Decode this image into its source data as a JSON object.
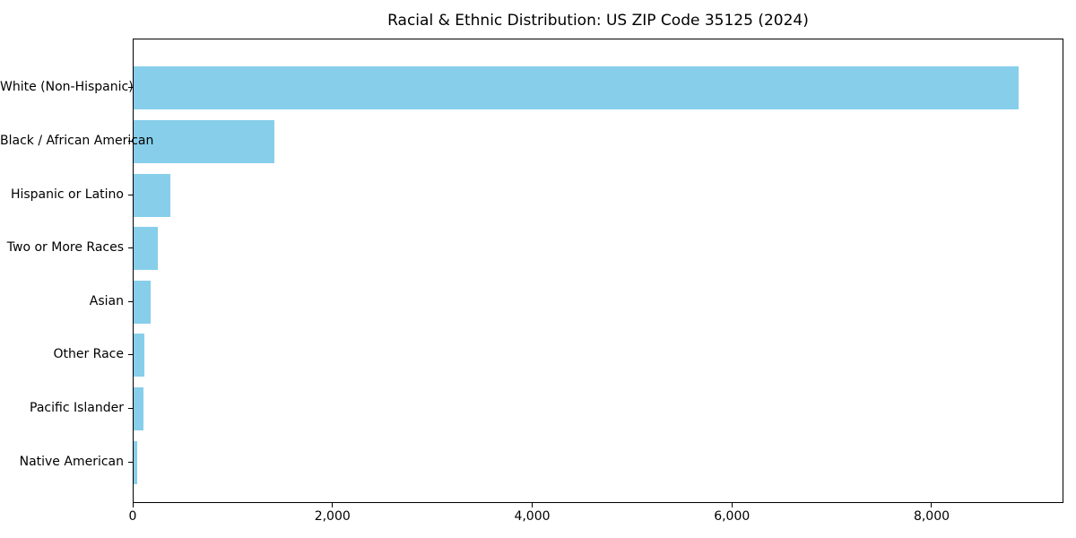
{
  "chart_data": {
    "type": "bar",
    "orientation": "horizontal",
    "title": "Racial & Ethnic Distribution: US ZIP Code 35125 (2024)",
    "categories": [
      "White (Non-Hispanic)",
      "Black / African American",
      "Hispanic or Latino",
      "Two or More Races",
      "Asian",
      "Other Race",
      "Pacific Islander",
      "Native American"
    ],
    "values": [
      8861,
      1408,
      368,
      240,
      168,
      105,
      96,
      40
    ],
    "bar_color": "#87CEEB",
    "xlim": [
      0,
      9320
    ],
    "xticks": [
      0,
      2000,
      4000,
      6000,
      8000
    ],
    "xtick_labels": [
      "0",
      "2,000",
      "4,000",
      "6,000",
      "8,000"
    ],
    "xlabel": "",
    "ylabel": "",
    "grid": false,
    "legend": null,
    "background_color": "#ffffff",
    "spine_color": "#000000"
  }
}
